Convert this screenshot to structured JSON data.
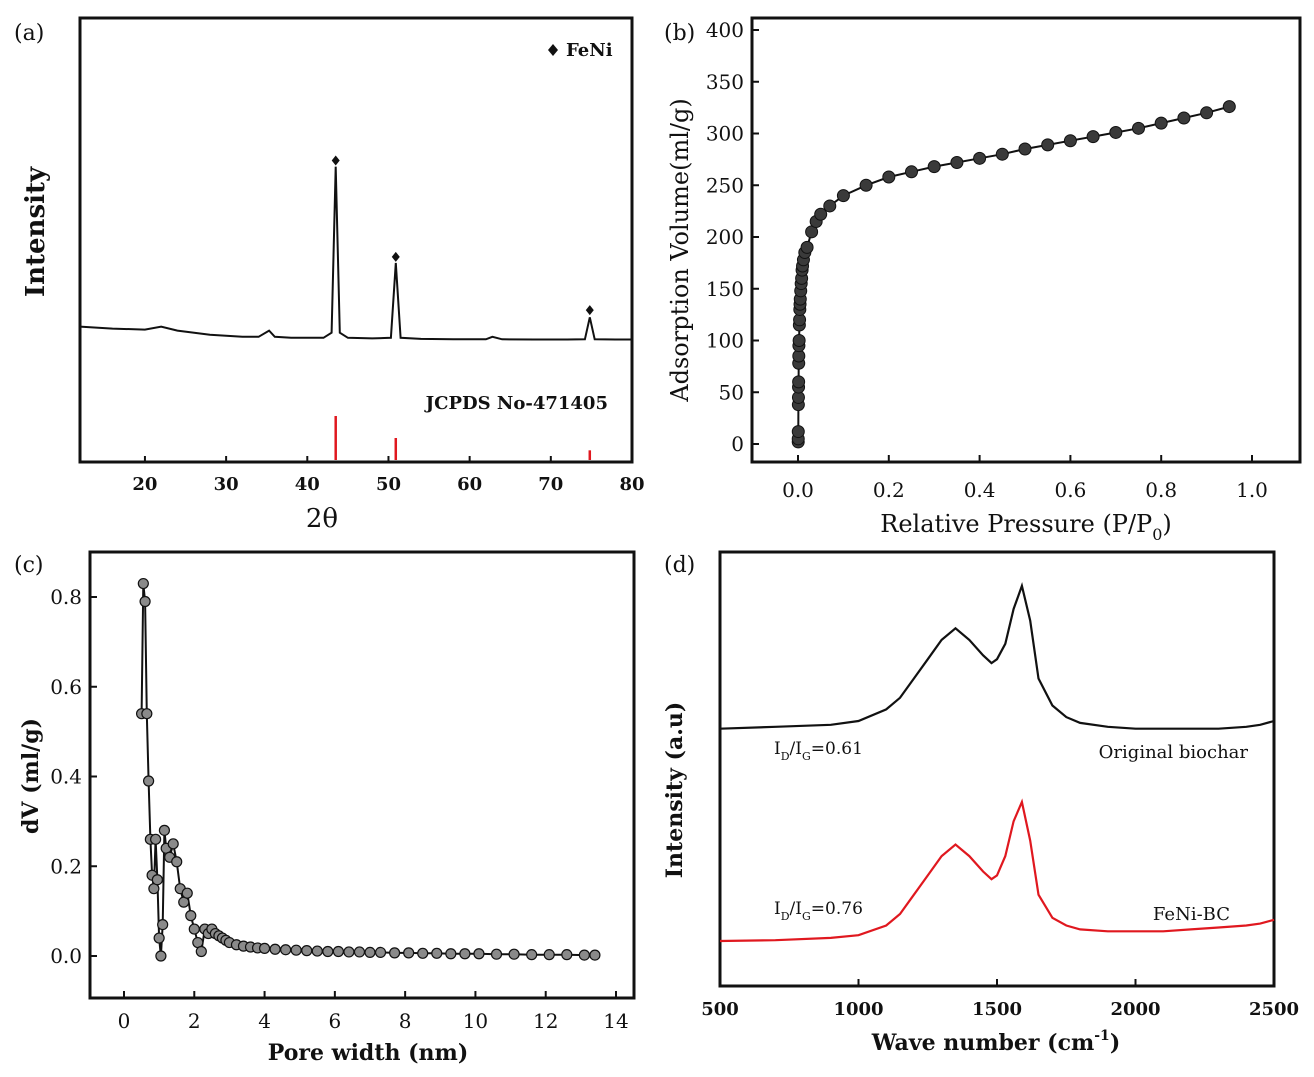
{
  "figure": {
    "panels": [
      {
        "id": "a",
        "label": "(a)",
        "chart_data": {
          "type": "line",
          "xlabel": "2θ",
          "ylabel": "Intensity",
          "xlim": [
            12,
            80
          ],
          "xticks": [
            "20",
            "30",
            "40",
            "50",
            "60",
            "70",
            "80"
          ],
          "legend": "FeNi",
          "legend_placement": "top-right",
          "reference_label": "JCPDS No-471405",
          "series": [
            {
              "x": [
                12,
                16,
                20,
                22,
                24,
                28,
                32,
                34,
                35.3,
                36,
                38,
                40,
                42,
                43.0,
                43.5,
                44.0,
                45,
                48,
                50.3,
                50.9,
                51.5,
                54,
                58,
                62,
                62.8,
                64,
                68,
                72,
                74.2,
                74.8,
                75.4,
                78,
                80
              ],
              "y": [
                9,
                8,
                7.5,
                9,
                7,
                5,
                4,
                4,
                7,
                4,
                3.5,
                3.5,
                3.5,
                6,
                87,
                6,
                3.5,
                3.2,
                3.5,
                40,
                3.5,
                3,
                2.8,
                2.8,
                4,
                2.8,
                2.7,
                2.7,
                2.8,
                13.5,
                2.8,
                2.7,
                2.7
              ],
              "color": "#111111"
            }
          ],
          "peak_markers": [
            {
              "x": 43.5,
              "y": 90
            },
            {
              "x": 50.9,
              "y": 43
            },
            {
              "x": 74.8,
              "y": 17
            }
          ],
          "reference_lines": [
            {
              "x": 43.5,
              "height": 1.0
            },
            {
              "x": 50.9,
              "height": 0.5
            },
            {
              "x": 74.8,
              "height": 0.22
            }
          ],
          "reference_color": "#e0181f"
        }
      },
      {
        "id": "b",
        "label": "(b)",
        "chart_data": {
          "type": "line",
          "xlabel": "Relative Pressure (P/P",
          "xlabel_sub": "0",
          "xlabel_tail": ")",
          "ylabel": "Adsorption Volume(ml/g)",
          "xlim": [
            -0.1,
            1.05
          ],
          "ylim": [
            -10,
            400
          ],
          "xticks": [
            "0.0",
            "0.2",
            "0.4",
            "0.6",
            "0.8",
            "1.0"
          ],
          "yticks": [
            "0",
            "50",
            "100",
            "150",
            "200",
            "250",
            "300",
            "350",
            "400"
          ],
          "series": [
            {
              "x": [
                0.0005,
                0.0005,
                0.0006,
                0.0008,
                0.001,
                0.0012,
                0.0014,
                0.0016,
                0.0018,
                0.002,
                0.0025,
                0.003,
                0.0035,
                0.004,
                0.0045,
                0.005,
                0.006,
                0.007,
                0.008,
                0.009,
                0.01,
                0.012,
                0.015,
                0.02,
                0.03,
                0.04,
                0.05,
                0.07,
                0.1,
                0.15,
                0.2,
                0.25,
                0.3,
                0.35,
                0.4,
                0.45,
                0.5,
                0.55,
                0.6,
                0.65,
                0.7,
                0.75,
                0.8,
                0.85,
                0.9,
                0.95
              ],
              "y": [
                2,
                5,
                12,
                38,
                45,
                55,
                60,
                78,
                85,
                95,
                100,
                115,
                120,
                130,
                135,
                140,
                148,
                155,
                160,
                168,
                172,
                178,
                185,
                190,
                205,
                215,
                222,
                230,
                240,
                250,
                258,
                263,
                268,
                272,
                276,
                280,
                285,
                289,
                293,
                297,
                301,
                305,
                310,
                315,
                320,
                326
              ],
              "color": "#111111"
            }
          ]
        }
      },
      {
        "id": "c",
        "label": "(c)",
        "chart_data": {
          "type": "line",
          "xlabel": "Pore width (nm)",
          "ylabel": "dV (ml/g)",
          "xlim": [
            -1,
            14.5
          ],
          "ylim": [
            -0.1,
            0.9
          ],
          "xticks": [
            "0",
            "2",
            "4",
            "6",
            "8",
            "10",
            "12",
            "14"
          ],
          "yticks": [
            "0.0",
            "0.2",
            "0.4",
            "0.6",
            "0.8"
          ],
          "series": [
            {
              "x": [
                0.5,
                0.55,
                0.6,
                0.65,
                0.7,
                0.75,
                0.8,
                0.85,
                0.9,
                0.95,
                1.0,
                1.05,
                1.1,
                1.15,
                1.2,
                1.3,
                1.4,
                1.5,
                1.6,
                1.7,
                1.8,
                1.9,
                2.0,
                2.1,
                2.2,
                2.3,
                2.4,
                2.5,
                2.6,
                2.7,
                2.8,
                2.9,
                3.0,
                3.2,
                3.4,
                3.6,
                3.8,
                4.0,
                4.3,
                4.6,
                4.9,
                5.2,
                5.5,
                5.8,
                6.1,
                6.4,
                6.7,
                7.0,
                7.3,
                7.7,
                8.1,
                8.5,
                8.9,
                9.3,
                9.7,
                10.1,
                10.6,
                11.1,
                11.6,
                12.1,
                12.6,
                13.1,
                13.4
              ],
              "y": [
                0.54,
                0.83,
                0.79,
                0.54,
                0.39,
                0.26,
                0.18,
                0.15,
                0.26,
                0.17,
                0.04,
                0.0,
                0.07,
                0.28,
                0.24,
                0.22,
                0.25,
                0.21,
                0.15,
                0.12,
                0.14,
                0.09,
                0.06,
                0.03,
                0.01,
                0.06,
                0.05,
                0.06,
                0.05,
                0.045,
                0.04,
                0.035,
                0.03,
                0.025,
                0.022,
                0.02,
                0.018,
                0.017,
                0.015,
                0.014,
                0.013,
                0.012,
                0.011,
                0.01,
                0.01,
                0.009,
                0.009,
                0.008,
                0.008,
                0.007,
                0.007,
                0.006,
                0.006,
                0.005,
                0.005,
                0.005,
                0.004,
                0.004,
                0.003,
                0.003,
                0.003,
                0.002,
                0.002
              ],
              "color": "#111111"
            }
          ]
        }
      },
      {
        "id": "d",
        "label": "(d)",
        "chart_data": {
          "type": "line",
          "xlabel": "Wave number (cm",
          "xlabel_sup": "-1",
          "xlabel_tail": ")",
          "ylabel": "Intensity (a.u)",
          "xlim": [
            500,
            2500
          ],
          "ylim": [
            0,
            10
          ],
          "xticks": [
            "500",
            "1000",
            "1500",
            "2000",
            "2500"
          ],
          "series": [
            {
              "name": "Original biochar",
              "ratio_text": "I",
              "ratio_sub1": "D",
              "ratio_mid": "/I",
              "ratio_sub2": "G",
              "ratio_value": "=0.61",
              "color": "#111111",
              "x": [
                500,
                700,
                900,
                1000,
                1100,
                1150,
                1200,
                1250,
                1300,
                1350,
                1400,
                1450,
                1480,
                1500,
                1530,
                1560,
                1590,
                1620,
                1650,
                1700,
                1750,
                1800,
                1900,
                2000,
                2100,
                2200,
                2300,
                2400,
                2450,
                2500
              ],
              "y": [
                6.2,
                6.25,
                6.3,
                6.4,
                6.7,
                7.0,
                7.5,
                8.0,
                8.5,
                8.8,
                8.5,
                8.1,
                7.9,
                8.0,
                8.4,
                9.3,
                9.9,
                9.0,
                7.5,
                6.8,
                6.5,
                6.35,
                6.25,
                6.2,
                6.2,
                6.2,
                6.2,
                6.25,
                6.3,
                6.4
              ]
            },
            {
              "name": "FeNi-BC",
              "ratio_text": "I",
              "ratio_sub1": "D",
              "ratio_mid": "/I",
              "ratio_sub2": "G",
              "ratio_value": "=0.76",
              "color": "#e0181f",
              "x": [
                500,
                700,
                900,
                1000,
                1100,
                1150,
                1200,
                1250,
                1300,
                1350,
                1400,
                1450,
                1480,
                1500,
                1530,
                1560,
                1590,
                1620,
                1650,
                1700,
                1750,
                1800,
                1900,
                2000,
                2100,
                2200,
                2300,
                2400,
                2450,
                2500
              ],
              "y": [
                0.7,
                0.72,
                0.78,
                0.85,
                1.1,
                1.4,
                1.9,
                2.4,
                2.9,
                3.2,
                2.9,
                2.5,
                2.3,
                2.4,
                2.9,
                3.8,
                4.3,
                3.3,
                1.9,
                1.3,
                1.1,
                1.0,
                0.95,
                0.95,
                0.95,
                1.0,
                1.05,
                1.1,
                1.15,
                1.25
              ]
            }
          ]
        }
      }
    ]
  }
}
